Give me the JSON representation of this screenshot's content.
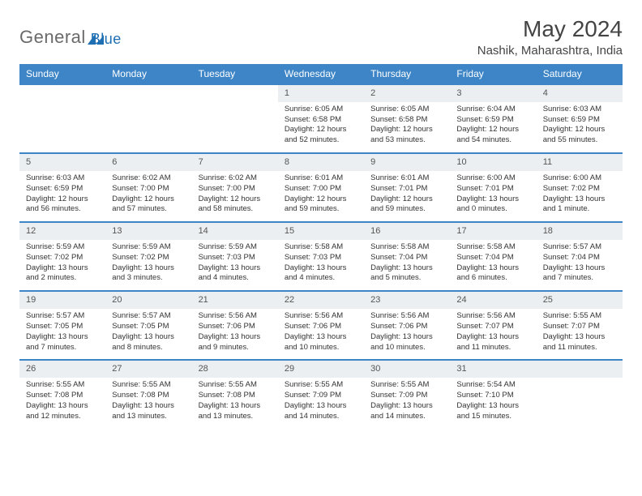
{
  "brand": {
    "name_part1": "General",
    "name_part2": "Blue",
    "color_gray": "#6a6a6a",
    "color_blue": "#1f6fb2"
  },
  "title": "May 2024",
  "location": "Nashik, Maharashtra, India",
  "header_bg": "#3d85c6",
  "day_headers": [
    "Sunday",
    "Monday",
    "Tuesday",
    "Wednesday",
    "Thursday",
    "Friday",
    "Saturday"
  ],
  "weeks": [
    [
      null,
      null,
      null,
      {
        "n": "1",
        "sr": "Sunrise: 6:05 AM",
        "ss": "Sunset: 6:58 PM",
        "dl1": "Daylight: 12 hours",
        "dl2": "and 52 minutes."
      },
      {
        "n": "2",
        "sr": "Sunrise: 6:05 AM",
        "ss": "Sunset: 6:58 PM",
        "dl1": "Daylight: 12 hours",
        "dl2": "and 53 minutes."
      },
      {
        "n": "3",
        "sr": "Sunrise: 6:04 AM",
        "ss": "Sunset: 6:59 PM",
        "dl1": "Daylight: 12 hours",
        "dl2": "and 54 minutes."
      },
      {
        "n": "4",
        "sr": "Sunrise: 6:03 AM",
        "ss": "Sunset: 6:59 PM",
        "dl1": "Daylight: 12 hours",
        "dl2": "and 55 minutes."
      }
    ],
    [
      {
        "n": "5",
        "sr": "Sunrise: 6:03 AM",
        "ss": "Sunset: 6:59 PM",
        "dl1": "Daylight: 12 hours",
        "dl2": "and 56 minutes."
      },
      {
        "n": "6",
        "sr": "Sunrise: 6:02 AM",
        "ss": "Sunset: 7:00 PM",
        "dl1": "Daylight: 12 hours",
        "dl2": "and 57 minutes."
      },
      {
        "n": "7",
        "sr": "Sunrise: 6:02 AM",
        "ss": "Sunset: 7:00 PM",
        "dl1": "Daylight: 12 hours",
        "dl2": "and 58 minutes."
      },
      {
        "n": "8",
        "sr": "Sunrise: 6:01 AM",
        "ss": "Sunset: 7:00 PM",
        "dl1": "Daylight: 12 hours",
        "dl2": "and 59 minutes."
      },
      {
        "n": "9",
        "sr": "Sunrise: 6:01 AM",
        "ss": "Sunset: 7:01 PM",
        "dl1": "Daylight: 12 hours",
        "dl2": "and 59 minutes."
      },
      {
        "n": "10",
        "sr": "Sunrise: 6:00 AM",
        "ss": "Sunset: 7:01 PM",
        "dl1": "Daylight: 13 hours",
        "dl2": "and 0 minutes."
      },
      {
        "n": "11",
        "sr": "Sunrise: 6:00 AM",
        "ss": "Sunset: 7:02 PM",
        "dl1": "Daylight: 13 hours",
        "dl2": "and 1 minute."
      }
    ],
    [
      {
        "n": "12",
        "sr": "Sunrise: 5:59 AM",
        "ss": "Sunset: 7:02 PM",
        "dl1": "Daylight: 13 hours",
        "dl2": "and 2 minutes."
      },
      {
        "n": "13",
        "sr": "Sunrise: 5:59 AM",
        "ss": "Sunset: 7:02 PM",
        "dl1": "Daylight: 13 hours",
        "dl2": "and 3 minutes."
      },
      {
        "n": "14",
        "sr": "Sunrise: 5:59 AM",
        "ss": "Sunset: 7:03 PM",
        "dl1": "Daylight: 13 hours",
        "dl2": "and 4 minutes."
      },
      {
        "n": "15",
        "sr": "Sunrise: 5:58 AM",
        "ss": "Sunset: 7:03 PM",
        "dl1": "Daylight: 13 hours",
        "dl2": "and 4 minutes."
      },
      {
        "n": "16",
        "sr": "Sunrise: 5:58 AM",
        "ss": "Sunset: 7:04 PM",
        "dl1": "Daylight: 13 hours",
        "dl2": "and 5 minutes."
      },
      {
        "n": "17",
        "sr": "Sunrise: 5:58 AM",
        "ss": "Sunset: 7:04 PM",
        "dl1": "Daylight: 13 hours",
        "dl2": "and 6 minutes."
      },
      {
        "n": "18",
        "sr": "Sunrise: 5:57 AM",
        "ss": "Sunset: 7:04 PM",
        "dl1": "Daylight: 13 hours",
        "dl2": "and 7 minutes."
      }
    ],
    [
      {
        "n": "19",
        "sr": "Sunrise: 5:57 AM",
        "ss": "Sunset: 7:05 PM",
        "dl1": "Daylight: 13 hours",
        "dl2": "and 7 minutes."
      },
      {
        "n": "20",
        "sr": "Sunrise: 5:57 AM",
        "ss": "Sunset: 7:05 PM",
        "dl1": "Daylight: 13 hours",
        "dl2": "and 8 minutes."
      },
      {
        "n": "21",
        "sr": "Sunrise: 5:56 AM",
        "ss": "Sunset: 7:06 PM",
        "dl1": "Daylight: 13 hours",
        "dl2": "and 9 minutes."
      },
      {
        "n": "22",
        "sr": "Sunrise: 5:56 AM",
        "ss": "Sunset: 7:06 PM",
        "dl1": "Daylight: 13 hours",
        "dl2": "and 10 minutes."
      },
      {
        "n": "23",
        "sr": "Sunrise: 5:56 AM",
        "ss": "Sunset: 7:06 PM",
        "dl1": "Daylight: 13 hours",
        "dl2": "and 10 minutes."
      },
      {
        "n": "24",
        "sr": "Sunrise: 5:56 AM",
        "ss": "Sunset: 7:07 PM",
        "dl1": "Daylight: 13 hours",
        "dl2": "and 11 minutes."
      },
      {
        "n": "25",
        "sr": "Sunrise: 5:55 AM",
        "ss": "Sunset: 7:07 PM",
        "dl1": "Daylight: 13 hours",
        "dl2": "and 11 minutes."
      }
    ],
    [
      {
        "n": "26",
        "sr": "Sunrise: 5:55 AM",
        "ss": "Sunset: 7:08 PM",
        "dl1": "Daylight: 13 hours",
        "dl2": "and 12 minutes."
      },
      {
        "n": "27",
        "sr": "Sunrise: 5:55 AM",
        "ss": "Sunset: 7:08 PM",
        "dl1": "Daylight: 13 hours",
        "dl2": "and 13 minutes."
      },
      {
        "n": "28",
        "sr": "Sunrise: 5:55 AM",
        "ss": "Sunset: 7:08 PM",
        "dl1": "Daylight: 13 hours",
        "dl2": "and 13 minutes."
      },
      {
        "n": "29",
        "sr": "Sunrise: 5:55 AM",
        "ss": "Sunset: 7:09 PM",
        "dl1": "Daylight: 13 hours",
        "dl2": "and 14 minutes."
      },
      {
        "n": "30",
        "sr": "Sunrise: 5:55 AM",
        "ss": "Sunset: 7:09 PM",
        "dl1": "Daylight: 13 hours",
        "dl2": "and 14 minutes."
      },
      {
        "n": "31",
        "sr": "Sunrise: 5:54 AM",
        "ss": "Sunset: 7:10 PM",
        "dl1": "Daylight: 13 hours",
        "dl2": "and 15 minutes."
      },
      null
    ]
  ]
}
